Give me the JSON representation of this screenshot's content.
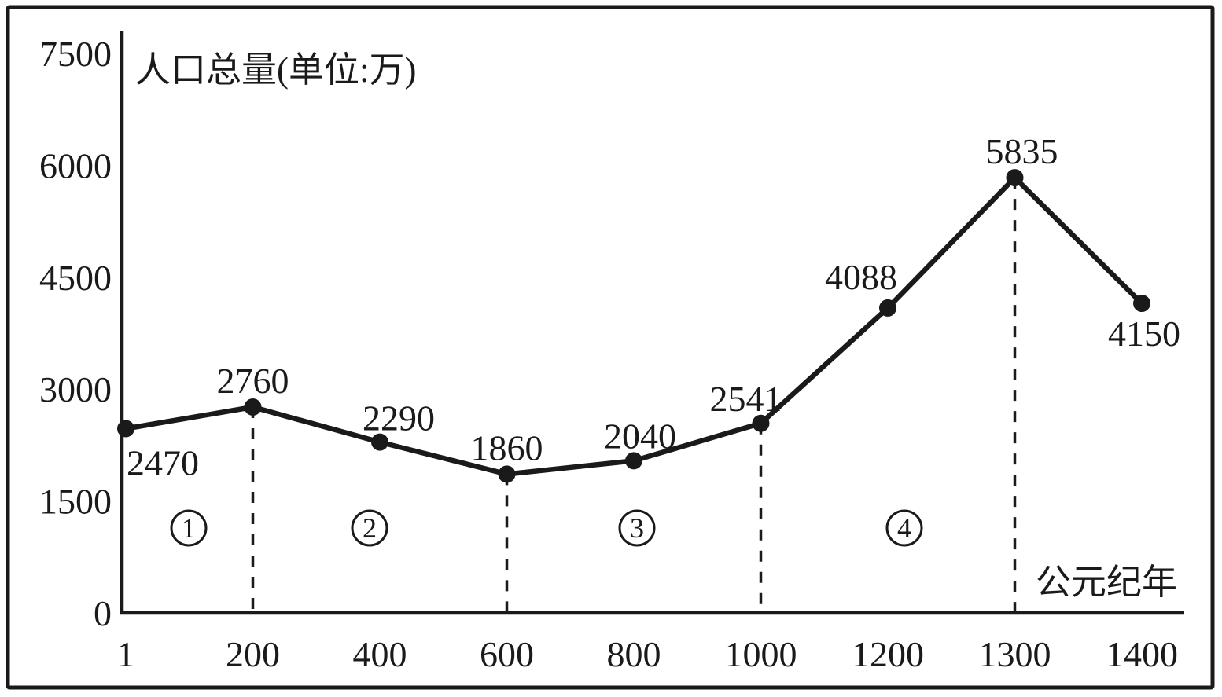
{
  "chart_data": {
    "type": "line",
    "title": "人口总量(单位:万)",
    "xlabel": "公元纪年",
    "ylabel": "人口总量(万)",
    "categories": [
      "1",
      "200",
      "400",
      "600",
      "800",
      "1000",
      "1200",
      "1300",
      "1400"
    ],
    "values": [
      2470,
      2760,
      2290,
      1860,
      2040,
      2541,
      4088,
      5835,
      4150
    ],
    "point_labels": [
      "2470",
      "2760",
      "2290",
      "1860",
      "2040",
      "2541",
      "4088",
      "5835",
      "4150"
    ],
    "y_ticks": [
      "0",
      "1500",
      "3000",
      "4500",
      "6000",
      "7500"
    ],
    "y_tick_values": [
      0,
      1500,
      3000,
      4500,
      6000,
      7500
    ],
    "ylim": [
      0,
      7500
    ],
    "grid": false,
    "legend": "none",
    "dashed_guide_categories": [
      "200",
      "600",
      "1000",
      "1300"
    ],
    "period_markers": [
      {
        "label": "①",
        "digit": "1",
        "span": "1-200"
      },
      {
        "label": "②",
        "digit": "2",
        "span": "200-600"
      },
      {
        "label": "③",
        "digit": "3",
        "span": "600-1000"
      },
      {
        "label": "④",
        "digit": "4",
        "span": "1000-1300"
      }
    ],
    "line_color": "#1a1a1a",
    "background_color": "#ffffff"
  }
}
